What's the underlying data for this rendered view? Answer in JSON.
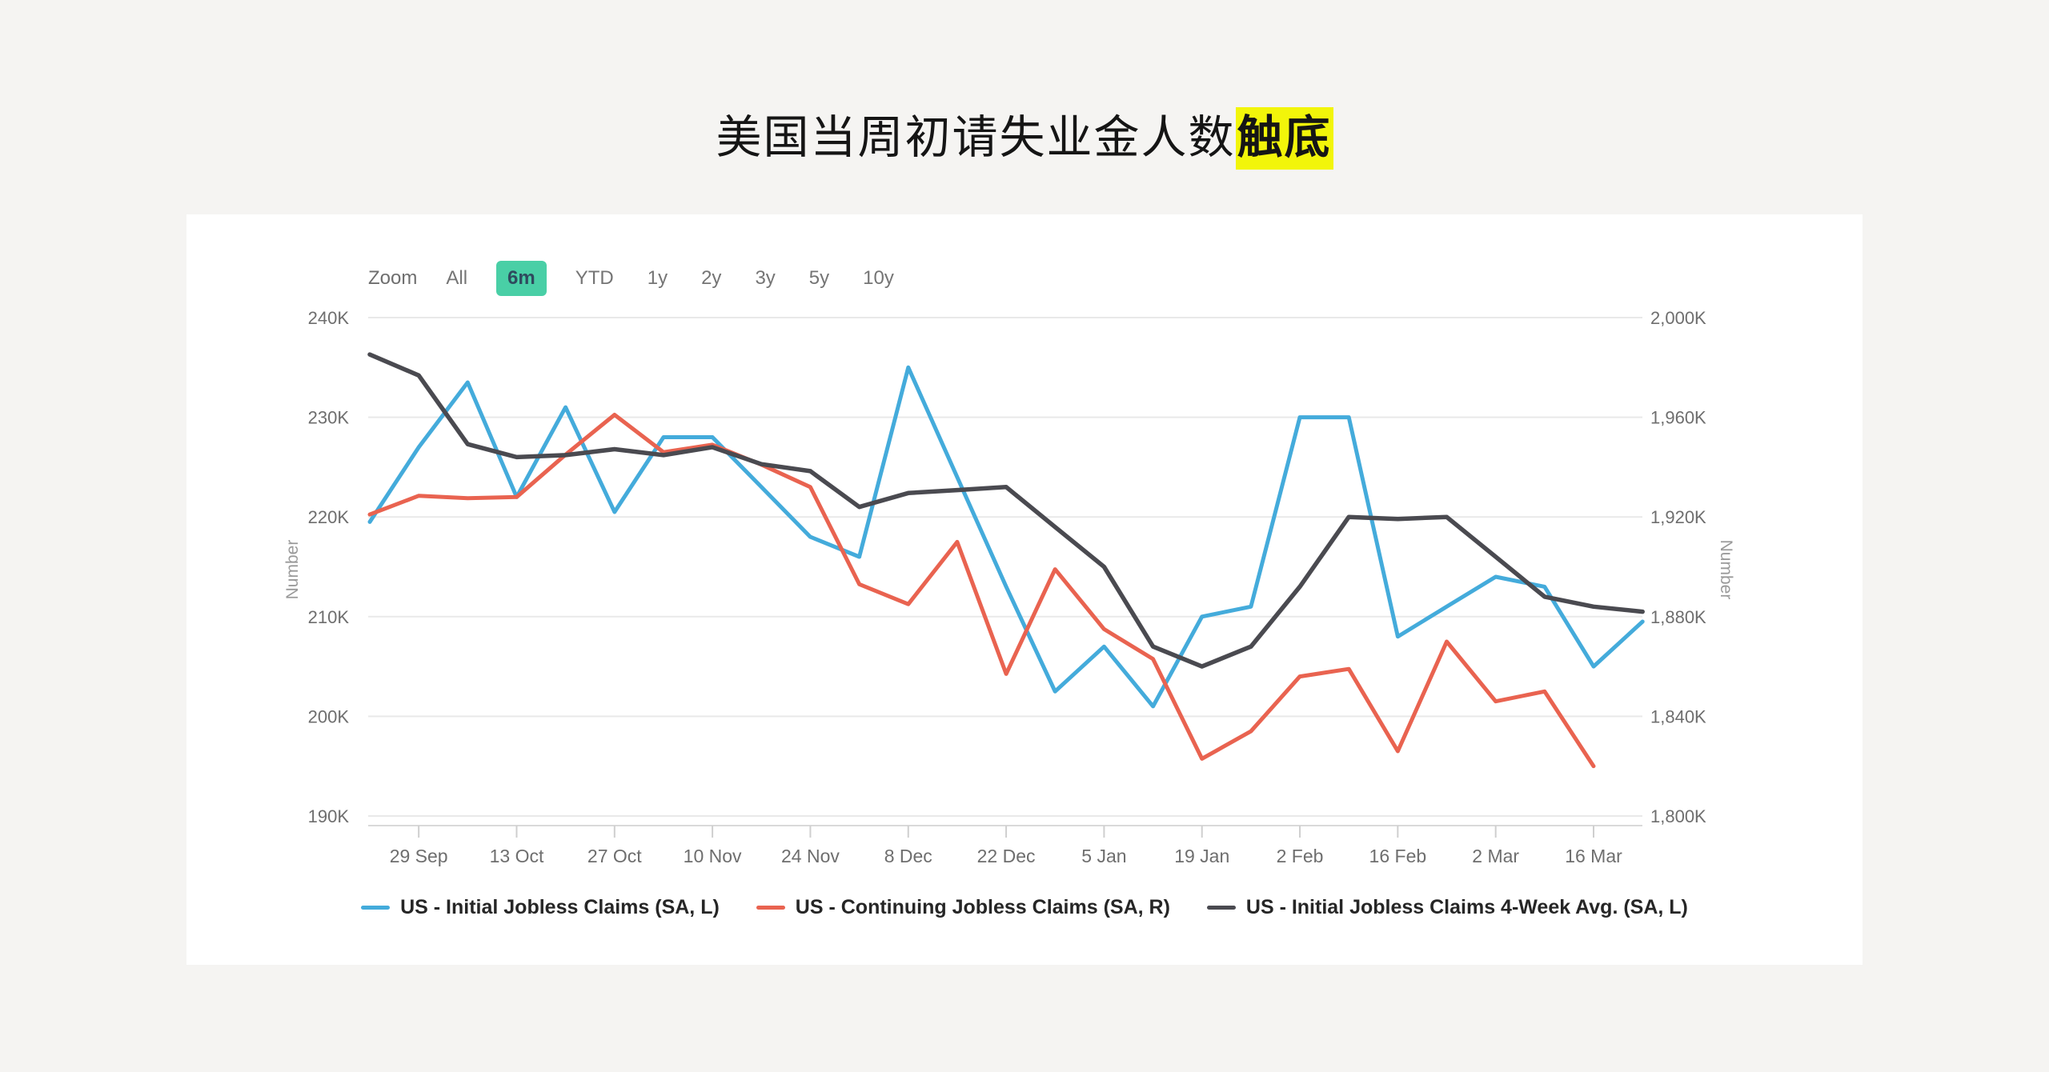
{
  "title": {
    "plain": "美国当周初请失业金人数",
    "highlight": "触底"
  },
  "colors": {
    "background": "#f5f4f2",
    "card_background": "#ffffff",
    "highlight": "#f2f50a",
    "accent": "#49cfa6",
    "accent_text": "#2f4a5e",
    "gridline": "#e9e9e9",
    "axis_line": "#d9d9d9",
    "tick": "#cfcfcf",
    "axis_label": "#6e6e6e",
    "axis_title": "#9a9a9a"
  },
  "toolbar": {
    "zoom_label": "Zoom",
    "ranges": [
      "All",
      "6m",
      "YTD",
      "1y",
      "2y",
      "3y",
      "5y",
      "10y"
    ],
    "active_range": "6m"
  },
  "chart_data": {
    "type": "line",
    "x": [
      "22 Sep",
      "29 Sep",
      "6 Oct",
      "13 Oct",
      "20 Oct",
      "27 Oct",
      "3 Nov",
      "10 Nov",
      "17 Nov",
      "24 Nov",
      "1 Dec",
      "8 Dec",
      "15 Dec",
      "22 Dec",
      "29 Dec",
      "5 Jan",
      "12 Jan",
      "19 Jan",
      "26 Jan",
      "2 Feb",
      "9 Feb",
      "16 Feb",
      "23 Feb",
      "2 Mar",
      "9 Mar",
      "16 Mar",
      "23 Mar"
    ],
    "x_tick_labels": [
      "29 Sep",
      "13 Oct",
      "27 Oct",
      "10 Nov",
      "24 Nov",
      "8 Dec",
      "22 Dec",
      "5 Jan",
      "19 Jan",
      "2 Feb",
      "16 Feb",
      "2 Mar",
      "16 Mar"
    ],
    "left_axis": {
      "title": "Number",
      "tick_labels": [
        "240K",
        "230K",
        "220K",
        "210K",
        "200K",
        "190K"
      ],
      "tick_values": [
        240,
        230,
        220,
        210,
        200,
        190
      ],
      "range": [
        190,
        240
      ],
      "unit": "thousands"
    },
    "right_axis": {
      "title": "Number",
      "tick_labels": [
        "2,000K",
        "1,960K",
        "1,920K",
        "1,880K",
        "1,840K",
        "1,800K"
      ],
      "tick_values": [
        2000,
        1960,
        1920,
        1880,
        1840,
        1800
      ],
      "range": [
        1800,
        2000
      ],
      "unit": "thousands"
    },
    "grid": "horizontal-only",
    "legend_position": "bottom",
    "series": [
      {
        "name": "US - Initial Jobless Claims (SA, L)",
        "axis": "left",
        "color": "#44abdb",
        "values": [
          219.5,
          227,
          233.5,
          222,
          231,
          220.5,
          228,
          228,
          223,
          218,
          216,
          235,
          224,
          213,
          202.5,
          207,
          201,
          210,
          211,
          230,
          230,
          208,
          211,
          214,
          213,
          205,
          209.5
        ]
      },
      {
        "name": "US - Continuing Jobless Claims (SA, R)",
        "axis": "right",
        "color": "#e96350",
        "values": [
          1921,
          1928.5,
          1927.5,
          1928,
          1945,
          1961,
          1946,
          1949,
          1941,
          1932,
          1893,
          1885,
          1910,
          1857,
          1899,
          1875,
          1863,
          1823,
          1834,
          1856,
          1859,
          1826,
          1870,
          1846,
          1850,
          1820
        ]
      },
      {
        "name": "US - Initial Jobless Claims 4-Week Avg. (SA, L)",
        "axis": "left",
        "color": "#4a4a50",
        "values": [
          236.3,
          234.2,
          227.3,
          226,
          226.2,
          226.8,
          226.2,
          227,
          225.3,
          224.6,
          221,
          222.4,
          222.7,
          223,
          219,
          215,
          207,
          205,
          207,
          213,
          220,
          219.8,
          220,
          216,
          212,
          211,
          210.5
        ]
      }
    ]
  }
}
